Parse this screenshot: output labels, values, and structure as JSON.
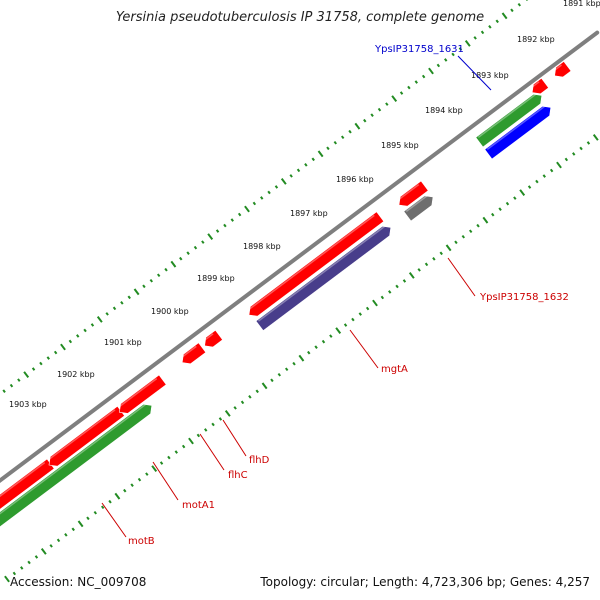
{
  "title": "Yersinia pseudotuberculosis IP 31758, complete genome",
  "accession": "Accession: NC_009708",
  "summary": "Topology: circular; Length: 4,723,306 bp; Genes: 4,257",
  "colors": {
    "backbone": "#7f7f7f",
    "tick": "#228b22",
    "gene_red": "#ff0000",
    "gene_green": "#2e9b2e",
    "gene_blue": "#0000ff",
    "gene_purple": "#483d8b",
    "gene_gray": "#6e6e6e",
    "label_red": "#cc0000",
    "label_blue": "#0000cc"
  },
  "ticks": [
    "1891 kbp",
    "1892 kbp",
    "1893 kbp",
    "1894 kbp",
    "1895 kbp",
    "1896 kbp",
    "1897 kbp",
    "1898 kbp",
    "1899 kbp",
    "1900 kbp",
    "1901 kbp",
    "1902 kbp",
    "1903 kbp"
  ],
  "gene_labels": [
    {
      "name": "YpsIP31758_1631",
      "color": "blue"
    },
    {
      "name": "YpsIP31758_1632",
      "color": "red"
    },
    {
      "name": "mgtA",
      "color": "red"
    },
    {
      "name": "flhD",
      "color": "red"
    },
    {
      "name": "flhC",
      "color": "red"
    },
    {
      "name": "motA1",
      "color": "red"
    },
    {
      "name": "motB",
      "color": "red"
    }
  ]
}
